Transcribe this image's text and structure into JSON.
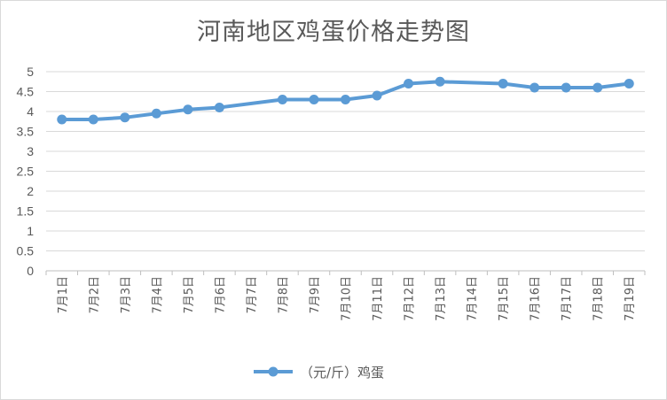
{
  "chart_data": {
    "type": "line",
    "title": "河南地区鸡蛋价格走势图",
    "xlabel": "",
    "ylabel": "",
    "ylim": [
      0,
      5
    ],
    "yticks": [
      "0",
      "0.5",
      "1",
      "1.5",
      "2",
      "2.5",
      "3",
      "3.5",
      "4",
      "4.5",
      "5"
    ],
    "grid": true,
    "legend_position": "bottom",
    "categories": [
      "7月1日",
      "7月2日",
      "7月3日",
      "7月4日",
      "7月5日",
      "7月6日",
      "7月7日",
      "7月8日",
      "7月9日",
      "7月10日",
      "7月11日",
      "7月12日",
      "7月13日",
      "7月14日",
      "7月15日",
      "7月16日",
      "7月17日",
      "7月18日",
      "7月19日"
    ],
    "series": [
      {
        "name": "（元/斤）鸡蛋",
        "color": "#5b9bd5",
        "values": [
          3.8,
          3.8,
          3.85,
          3.95,
          4.05,
          4.1,
          null,
          4.3,
          4.3,
          4.3,
          4.4,
          4.7,
          4.75,
          null,
          4.7,
          4.6,
          4.6,
          4.6,
          4.7
        ]
      }
    ]
  }
}
